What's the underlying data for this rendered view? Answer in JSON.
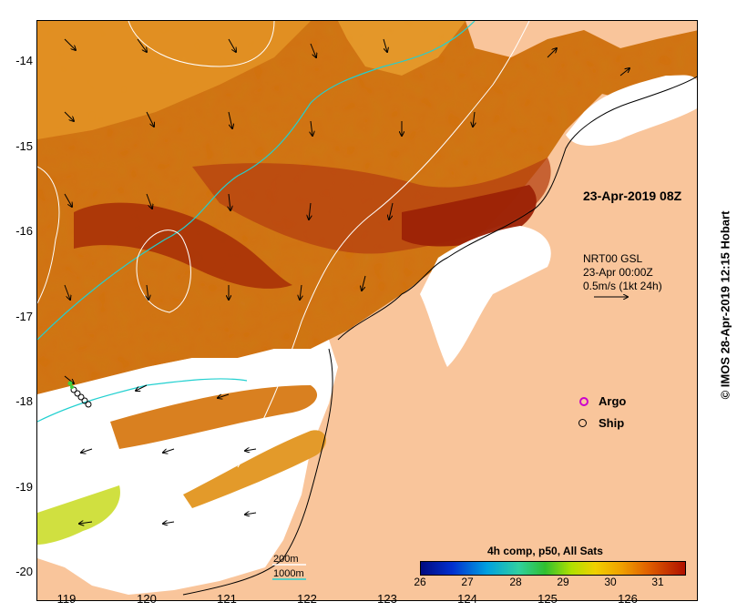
{
  "map": {
    "date_label": "23-Apr-2019 08Z",
    "current_info": [
      "NRT00 GSL",
      "23-Apr 00:00Z",
      "0.5m/s (1kt 24h)"
    ],
    "credit": "© IMOS 28-Apr-2019 12:15 Hobart",
    "lat_labels": [
      "-14",
      "-15",
      "-16",
      "-17",
      "-18",
      "-19",
      "-20"
    ],
    "lon_labels": [
      "119",
      "120",
      "121",
      "122",
      "123",
      "124",
      "125",
      "126"
    ],
    "legend": {
      "argo": "Argo",
      "ship": "Ship",
      "argo_color": "#cc00cc"
    },
    "bathymetry": {
      "depth_200": "200m",
      "depth_1000": "1000m",
      "color_200": "#ffffff",
      "color_1000": "#22d0d0"
    },
    "colorbar": {
      "title": "4h comp, p50, All Sats",
      "ticks": [
        "26",
        "27",
        "28",
        "29",
        "30",
        "31"
      ]
    },
    "colors": {
      "land": "#f9c59b",
      "warm_sst": "#c2500a",
      "hot_sst": "#a52a06",
      "cool_sst": "#e0a020",
      "no_data": "#ffffff"
    }
  }
}
